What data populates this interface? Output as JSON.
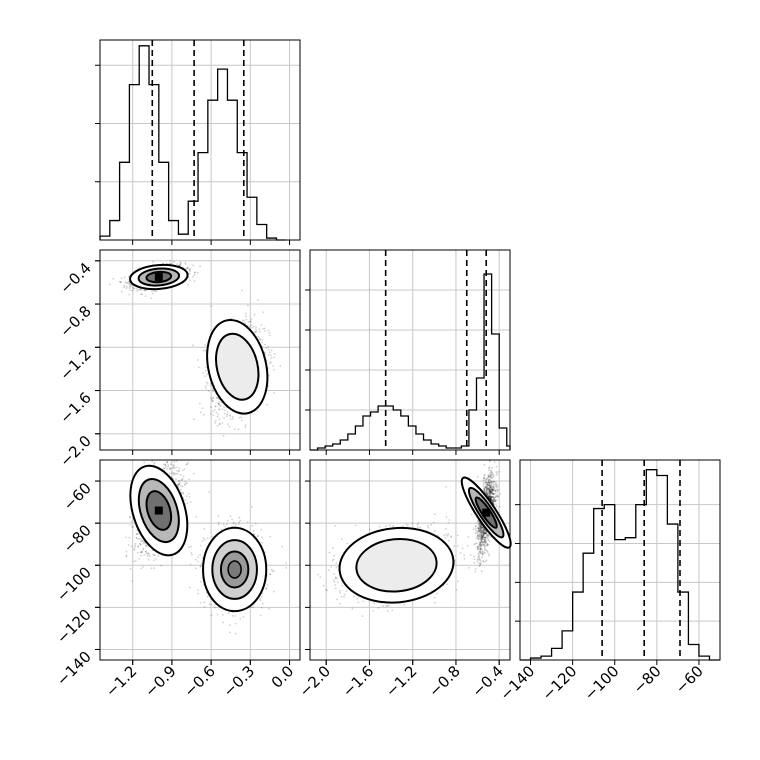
{
  "chart_data": [
    {
      "type": "histogram",
      "panel": "hist-param-1",
      "xlim": [
        -1.45,
        0.08
      ],
      "xticks": [
        -1.2,
        -0.9,
        -0.6,
        -0.3,
        0.0
      ],
      "xtick_labels": [
        "−1.2",
        "−0.9",
        "−0.6",
        "−0.3",
        "0.0"
      ],
      "bin_edges": [
        -1.45,
        -1.375,
        -1.3,
        -1.225,
        -1.15,
        -1.075,
        -1.0,
        -0.925,
        -0.85,
        -0.775,
        -0.7,
        -0.625,
        -0.55,
        -0.475,
        -0.4,
        -0.325,
        -0.25,
        -0.175,
        -0.1,
        -0.025
      ],
      "counts": [
        0.02,
        0.1,
        0.4,
        0.8,
        1.0,
        0.8,
        0.4,
        0.1,
        0.03,
        0.2,
        0.45,
        0.72,
        0.88,
        0.72,
        0.45,
        0.22,
        0.08,
        0.01,
        0.0
      ],
      "ymax": 1.03,
      "yticks": [
        0.3,
        0.6,
        0.9
      ],
      "quantile_lines": [
        -1.05,
        -0.73,
        -0.35
      ],
      "grid": true
    },
    {
      "type": "contour-scatter",
      "panel": "param-1-vs-param-2",
      "xlim": [
        -1.45,
        0.08
      ],
      "ylim": [
        -2.15,
        -0.3
      ],
      "yticks": [
        -0.4,
        -0.8,
        -1.2,
        -1.6,
        -2.0
      ],
      "ytick_labels": [
        "−0.4",
        "−0.8",
        "−1.2",
        "−1.6",
        "−2.0"
      ],
      "clusters": [
        {
          "center": [
            -1.0,
            -0.55
          ],
          "spread": [
            0.1,
            0.05
          ],
          "rho": 0.4,
          "contour_levels": 3,
          "peak": "high"
        },
        {
          "center": [
            -0.4,
            -1.38
          ],
          "spread": [
            0.1,
            0.2
          ],
          "rho": 0.3,
          "contour_levels": 2,
          "peak": "low"
        }
      ],
      "grid": true
    },
    {
      "type": "histogram",
      "panel": "hist-param-2",
      "xlim": [
        -2.15,
        -0.3
      ],
      "xticks": [
        -2.0,
        -1.6,
        -1.2,
        -0.8,
        -0.4
      ],
      "xtick_labels": [
        "−2.0",
        "−1.6",
        "−1.2",
        "−0.8",
        "−0.4"
      ],
      "bin_edges": [
        -2.15,
        -2.08,
        -2.01,
        -1.94,
        -1.87,
        -1.8,
        -1.73,
        -1.66,
        -1.59,
        -1.52,
        -1.45,
        -1.38,
        -1.31,
        -1.24,
        -1.17,
        -1.1,
        -1.03,
        -0.96,
        -0.89,
        -0.82,
        -0.75,
        -0.68,
        -0.61,
        -0.54,
        -0.47,
        -0.4,
        -0.33,
        -0.3
      ],
      "counts": [
        0.0,
        0.01,
        0.02,
        0.03,
        0.05,
        0.08,
        0.12,
        0.17,
        0.19,
        0.22,
        0.22,
        0.2,
        0.17,
        0.12,
        0.08,
        0.05,
        0.03,
        0.02,
        0.01,
        0.01,
        0.02,
        0.2,
        0.36,
        0.88,
        0.58,
        0.11,
        0.02
      ],
      "ymax": 1.0,
      "yticks": [
        0.2,
        0.4,
        0.6,
        0.8
      ],
      "quantile_lines": [
        -1.45,
        -0.7,
        -0.52
      ],
      "grid": true
    },
    {
      "type": "contour-scatter",
      "panel": "param-1-vs-param-3",
      "xlim": [
        -1.45,
        0.08
      ],
      "ylim": [
        -145,
        -50
      ],
      "clusters": [
        {
          "center": [
            -1.0,
            -74
          ],
          "spread": [
            0.09,
            10
          ],
          "rho": 0.4,
          "contour_levels": 3,
          "peak": "high"
        },
        {
          "center": [
            -0.42,
            -102
          ],
          "spread": [
            0.11,
            9
          ],
          "rho": 0.0,
          "contour_levels": 3,
          "peak": "medium"
        }
      ],
      "grid": true
    },
    {
      "type": "contour-scatter",
      "panel": "param-2-vs-param-3",
      "xlim": [
        -2.15,
        -0.3
      ],
      "ylim": [
        -145,
        -50
      ],
      "clusters": [
        {
          "center": [
            -1.35,
            -100
          ],
          "spread": [
            0.24,
            8
          ],
          "rho": 0.3,
          "contour_levels": 2,
          "peak": "low"
        },
        {
          "center": [
            -0.52,
            -75
          ],
          "spread": [
            0.04,
            9
          ],
          "rho": 0.55,
          "contour_levels": 3,
          "peak": "high"
        }
      ],
      "grid": true
    },
    {
      "type": "histogram",
      "panel": "hist-param-3",
      "xlim": [
        -145,
        -50
      ],
      "xticks": [
        -140,
        -120,
        -100,
        -80,
        -60
      ],
      "xtick_labels": [
        "−140",
        "−120",
        "−100",
        "−80",
        "−60"
      ],
      "bin_edges": [
        -145,
        -140,
        -135,
        -130,
        -125,
        -120,
        -115,
        -110,
        -105,
        -100,
        -95,
        -90,
        -85,
        -80,
        -75,
        -70,
        -65,
        -60,
        -55,
        -50
      ],
      "counts": [
        0.0,
        0.01,
        0.02,
        0.06,
        0.15,
        0.35,
        0.55,
        0.78,
        0.8,
        0.62,
        0.63,
        0.8,
        0.98,
        0.95,
        0.7,
        0.35,
        0.08,
        0.02,
        0.0
      ],
      "ymax": 1.03,
      "yticks": [
        0.2,
        0.4,
        0.6,
        0.8
      ],
      "ytick_labels": [
        "−60",
        "−80",
        "−100",
        "−120",
        "−140"
      ],
      "ytick_values": [
        -60,
        -80,
        -100,
        -120,
        -140
      ],
      "quantile_lines": [
        -106,
        -86,
        -69
      ],
      "grid": true
    }
  ]
}
